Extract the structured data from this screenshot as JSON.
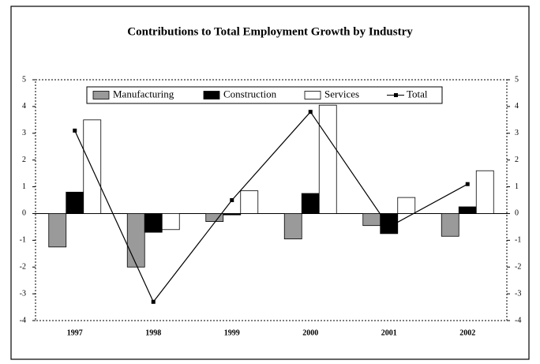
{
  "chart_data": {
    "type": "bar",
    "title": "Contributions to Total Employment Growth by Industry",
    "categories": [
      "1997",
      "1998",
      "1999",
      "2000",
      "2001",
      "2002"
    ],
    "series": [
      {
        "name": "Manufacturing",
        "color": "#9a9a9a",
        "values": [
          -1.25,
          -2.0,
          -0.3,
          -0.95,
          -0.45,
          -0.85
        ]
      },
      {
        "name": "Construction",
        "color": "#000000",
        "values": [
          0.8,
          -0.7,
          -0.05,
          0.75,
          -0.75,
          0.25
        ]
      },
      {
        "name": "Services",
        "color": "#ffffff",
        "values": [
          3.5,
          -0.6,
          0.85,
          4.05,
          0.6,
          1.6
        ]
      },
      {
        "name": "Total",
        "type": "line",
        "color": "#000000",
        "values": [
          3.1,
          -3.3,
          0.5,
          3.8,
          -0.5,
          1.1
        ]
      }
    ],
    "ylim": [
      -4,
      5
    ],
    "yticks": [
      -4,
      -3,
      -2,
      -1,
      0,
      1,
      2,
      3,
      4,
      5
    ],
    "y2lim": [
      -4,
      5
    ],
    "y2ticks": [
      -4,
      -3,
      -2,
      -1,
      0,
      1,
      2,
      3,
      4,
      5
    ],
    "grid": false
  }
}
